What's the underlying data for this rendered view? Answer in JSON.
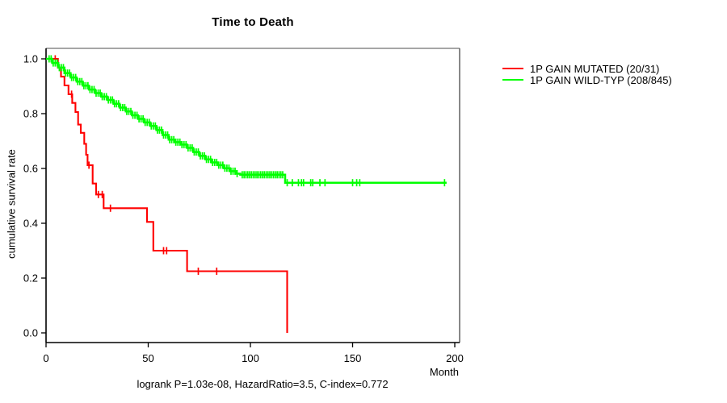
{
  "chart_data": {
    "type": "line",
    "subtype": "kaplan-meier-step",
    "title": "Time to Death",
    "xlabel": "Month",
    "ylabel": "cumulative survival rate",
    "annotation": "logrank P=1.03e-08, HazardRatio=3.5, C-index=0.772",
    "xlim": [
      0,
      200
    ],
    "ylim": [
      0.0,
      1.0
    ],
    "x_ticks": [
      0,
      50,
      100,
      150,
      200
    ],
    "y_ticks": [
      1.0,
      0.8,
      0.6,
      0.4,
      0.2,
      0.0
    ],
    "grid": false,
    "legend_position": "right-outside",
    "frame_colors": {
      "top": "#888888",
      "right": "#555555",
      "bottom": "#000000",
      "left": "#000000"
    },
    "series": [
      {
        "name": "1P GAIN MUTATED (20/31)",
        "color": "#ff0000",
        "events": 20,
        "n": 31,
        "steps": [
          [
            0,
            1.0
          ],
          [
            5.8,
            0.968
          ],
          [
            7.3,
            0.935
          ],
          [
            9,
            0.903
          ],
          [
            11,
            0.871
          ],
          [
            12.8,
            0.839
          ],
          [
            14.4,
            0.806
          ],
          [
            15.7,
            0.76
          ],
          [
            17,
            0.73
          ],
          [
            18.7,
            0.69
          ],
          [
            19.6,
            0.65
          ],
          [
            20.3,
            0.612
          ],
          [
            22.8,
            0.545
          ],
          [
            24.5,
            0.505
          ],
          [
            28.2,
            0.455
          ],
          [
            49.4,
            0.405
          ],
          [
            52.5,
            0.3
          ],
          [
            69,
            0.225
          ],
          [
            118,
            0.0
          ]
        ],
        "censor_months": [
          4.5,
          12.5,
          21,
          25.6,
          27.5,
          31.5,
          57.5,
          59,
          74.5,
          83.5
        ],
        "censor_ranges": []
      },
      {
        "name": "1P GAIN WILD-TYP (208/845)",
        "color": "#00ff00",
        "events": 208,
        "n": 845,
        "steps": [
          [
            0,
            1.0
          ],
          [
            3,
            0.985
          ],
          [
            6,
            0.968
          ],
          [
            9,
            0.948
          ],
          [
            12,
            0.932
          ],
          [
            15,
            0.917
          ],
          [
            18,
            0.902
          ],
          [
            21,
            0.888
          ],
          [
            24,
            0.875
          ],
          [
            27,
            0.862
          ],
          [
            30,
            0.85
          ],
          [
            33,
            0.836
          ],
          [
            36,
            0.822
          ],
          [
            39,
            0.808
          ],
          [
            42,
            0.794
          ],
          [
            45,
            0.781
          ],
          [
            48,
            0.768
          ],
          [
            51,
            0.755
          ],
          [
            54,
            0.74
          ],
          [
            57,
            0.722
          ],
          [
            60,
            0.705
          ],
          [
            63,
            0.696
          ],
          [
            66,
            0.687
          ],
          [
            69,
            0.675
          ],
          [
            72,
            0.66
          ],
          [
            75,
            0.646
          ],
          [
            78,
            0.633
          ],
          [
            81,
            0.622
          ],
          [
            84,
            0.612
          ],
          [
            87,
            0.601
          ],
          [
            90,
            0.59
          ],
          [
            93,
            0.581
          ],
          [
            95,
            0.577
          ],
          [
            117,
            0.548
          ],
          [
            196,
            0.548
          ]
        ],
        "censor_months": [
          118,
          120.5,
          123.5,
          125,
          126,
          129.5,
          130.5,
          134,
          136.5,
          150,
          152,
          153.5,
          195
        ],
        "censor_ranges": [
          {
            "from": 1.5,
            "to": 94,
            "step": 1.0
          },
          {
            "from": 96,
            "to": 116.5,
            "step": 0.9
          }
        ]
      }
    ]
  }
}
